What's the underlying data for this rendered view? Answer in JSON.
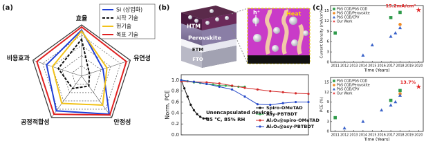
{
  "panel_labels": [
    "(a)",
    "(b)",
    "(c)"
  ],
  "schematic": {
    "layers": [
      "HTM",
      "Perovskite",
      "ETM",
      "FTO"
    ],
    "zoom_labels": [
      "h⁺",
      "Heat"
    ]
  },
  "chart_data": [
    {
      "type": "radar",
      "categories": [
        "효율",
        "유연성",
        "안정성",
        "공정적합성",
        "비용효과"
      ],
      "rlim": [
        0,
        5
      ],
      "rticks": [
        1,
        2,
        3,
        4,
        5
      ],
      "series": [
        {
          "name": "Si (상업화)",
          "color": "#1f3fd6",
          "dash": false,
          "values": [
            4.5,
            2.2,
            4.6,
            4.2,
            3.6
          ]
        },
        {
          "name": "시작 기술",
          "color": "#111111",
          "dash": true,
          "values": [
            3.6,
            0.8,
            1.2,
            1.5,
            2.4
          ]
        },
        {
          "name": "현기술",
          "color": "#f2c21a",
          "dash": false,
          "values": [
            4.4,
            2.6,
            3.5,
            3.3,
            3.0
          ]
        },
        {
          "name": "목표 기술",
          "color": "#e02020",
          "dash": false,
          "values": [
            4.8,
            4.6,
            4.7,
            4.6,
            4.6
          ]
        }
      ]
    },
    {
      "type": "line",
      "ylabel": "Norm. PCE",
      "annotations": [
        "Unencapsulated devices",
        "85 °C, 85% RH"
      ],
      "xlim": [
        0,
        1000
      ],
      "ylim": [
        0,
        1.1
      ],
      "yticks": [
        {
          "value": 0,
          "label": "0.0"
        },
        {
          "value": 0.2,
          "label": "0.2"
        },
        {
          "value": 0.4,
          "label": "0.4"
        },
        {
          "value": 0.6,
          "label": "0.6"
        },
        {
          "value": 0.8,
          "label": "0.8"
        },
        {
          "value": 1,
          "label": "1.0"
        }
      ],
      "series": [
        {
          "name": "Spiro-OMeTAD",
          "color": "#111111",
          "x": [
            0,
            25,
            50,
            75,
            100,
            125,
            150,
            175,
            200
          ],
          "values": [
            1.0,
            0.85,
            0.7,
            0.55,
            0.45,
            0.38,
            0.33,
            0.3,
            0.3
          ]
        },
        {
          "name": "Asy-PBTBDT",
          "color": "#2fa84f",
          "x": [
            0,
            50,
            100,
            150,
            200,
            250,
            300,
            350,
            400,
            450,
            500
          ],
          "values": [
            1.0,
            0.98,
            0.96,
            0.95,
            0.93,
            0.92,
            0.9,
            0.9,
            0.89,
            0.88,
            0.88
          ]
        },
        {
          "name": "Al₂O₃@spiro-OMeTAD",
          "color": "#d42a2a",
          "x": [
            0,
            100,
            200,
            300,
            400,
            500,
            600,
            700,
            800,
            900,
            1000
          ],
          "values": [
            0.98,
            0.97,
            0.96,
            0.94,
            0.9,
            0.86,
            0.83,
            0.8,
            0.78,
            0.76,
            0.75
          ]
        },
        {
          "name": "Al₂O₃@asy-PBTBDT",
          "color": "#2548c8",
          "x": [
            0,
            100,
            200,
            300,
            400,
            500,
            600,
            700,
            800,
            900,
            1000
          ],
          "values": [
            1.0,
            0.97,
            0.93,
            0.88,
            0.83,
            0.7,
            0.56,
            0.55,
            0.58,
            0.6,
            0.6
          ]
        }
      ]
    },
    {
      "type": "scatter",
      "ylabel": "Current Density (mA/cm²)",
      "xlabel": "Time (Years)",
      "annotation": "15.2mA/cm²",
      "xlim": [
        2010.5,
        2020.5
      ],
      "xticks": [
        2011,
        2012,
        2013,
        2014,
        2015,
        2016,
        2017,
        2018,
        2019,
        2020
      ],
      "ylim": [
        0,
        16.5
      ],
      "yticks": [
        0,
        3,
        6,
        9,
        12,
        15
      ],
      "series": [
        {
          "name": "PbS CQD/PbS CQD",
          "color": "#2e9a4a",
          "marker": "square",
          "x": [
            2011,
            2017,
            2018
          ],
          "values": [
            8.5,
            13,
            14.5
          ]
        },
        {
          "name": "PbS CQD/Perovskite",
          "color": "#f08a24",
          "marker": "circle",
          "x": [
            2018
          ],
          "values": [
            11
          ]
        },
        {
          "name": "PbS CQD/CPV",
          "color": "#3a62c9",
          "marker": "triangle",
          "x": [
            2014,
            2015,
            2017,
            2017.5,
            2018
          ],
          "values": [
            2,
            5,
            7.5,
            8.5,
            10
          ]
        },
        {
          "name": "Our Work",
          "color": "#e02020",
          "marker": "star",
          "x": [
            2020
          ],
          "values": [
            15.2
          ]
        }
      ]
    },
    {
      "type": "scatter",
      "ylabel": "PCE (%)",
      "xlabel": "Time (Years)",
      "annotation": "13.7%",
      "xlim": [
        2010.5,
        2020.5
      ],
      "xticks": [
        2011,
        2012,
        2013,
        2014,
        2015,
        2016,
        2017,
        2018,
        2019,
        2020
      ],
      "ylim": [
        0,
        16.5
      ],
      "yticks": [
        0,
        3,
        6,
        9,
        12,
        15
      ],
      "series": [
        {
          "name": "PbS CQD/PbS CQD",
          "color": "#2e9a4a",
          "marker": "square",
          "x": [
            2011,
            2017,
            2018
          ],
          "values": [
            4.2,
            9.5,
            12.5
          ]
        },
        {
          "name": "PbS CQD/Perovskite",
          "color": "#f08a24",
          "marker": "circle",
          "x": [
            2018
          ],
          "values": [
            11.5
          ]
        },
        {
          "name": "PbS CQD/CPV",
          "color": "#3a62c9",
          "marker": "triangle",
          "x": [
            2012,
            2014,
            2016,
            2017,
            2017.5,
            2018
          ],
          "values": [
            1,
            3,
            6.5,
            8,
            9,
            11
          ]
        },
        {
          "name": "Our Work",
          "color": "#e02020",
          "marker": "star",
          "x": [
            2020
          ],
          "values": [
            13.7
          ]
        }
      ]
    }
  ]
}
